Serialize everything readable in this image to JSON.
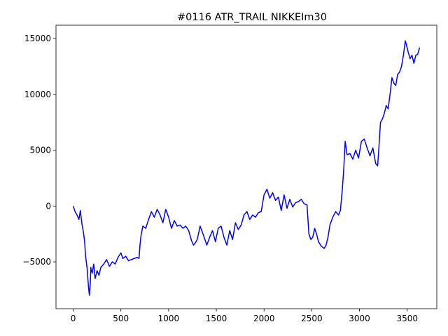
{
  "chart_data": {
    "type": "line",
    "title": "#0116 ATR_TRAIL NIKKEIm30",
    "xlabel": "",
    "ylabel": "",
    "xlim": [
      -180,
      3810
    ],
    "ylim": [
      -9200,
      16200
    ],
    "x_ticks": [
      0,
      500,
      1000,
      1500,
      2000,
      2500,
      3000,
      3500
    ],
    "y_ticks": [
      -5000,
      0,
      5000,
      10000,
      15000
    ],
    "grid": false,
    "legend": "none",
    "line_color": "#0000ff",
    "series": [
      {
        "x": [
          0,
          20,
          40,
          60,
          75,
          90,
          100,
          110,
          120,
          130,
          145,
          160,
          170,
          180,
          185,
          190,
          200,
          215,
          230,
          250,
          270,
          290,
          320,
          350,
          380,
          410,
          440,
          470,
          500,
          520,
          550,
          580,
          610,
          640,
          670,
          690,
          700,
          710,
          730,
          760,
          790,
          820,
          850,
          880,
          910,
          940,
          970,
          1000,
          1030,
          1060,
          1090,
          1120,
          1150,
          1180,
          1210,
          1240,
          1260,
          1280,
          1300,
          1330,
          1360,
          1400,
          1430,
          1460,
          1490,
          1520,
          1550,
          1580,
          1610,
          1640,
          1670,
          1700,
          1730,
          1760,
          1790,
          1820,
          1850,
          1880,
          1910,
          1940,
          1970,
          2000,
          2030,
          2060,
          2090,
          2120,
          2150,
          2180,
          2210,
          2240,
          2270,
          2300,
          2330,
          2360,
          2390,
          2420,
          2450,
          2470,
          2490,
          2510,
          2530,
          2550,
          2570,
          2600,
          2630,
          2650,
          2670,
          2690,
          2720,
          2750,
          2780,
          2800,
          2820,
          2835,
          2850,
          2870,
          2900,
          2930,
          2960,
          2990,
          3020,
          3050,
          3080,
          3110,
          3140,
          3170,
          3190,
          3200,
          3220,
          3240,
          3260,
          3280,
          3300,
          3320,
          3340,
          3360,
          3380,
          3400,
          3420,
          3440,
          3460,
          3480,
          3490,
          3510,
          3530,
          3550,
          3570,
          3590,
          3610,
          3630
        ],
        "y": [
          0,
          -500,
          -800,
          -1200,
          -400,
          -1500,
          -2000,
          -2500,
          -3200,
          -4500,
          -5500,
          -7200,
          -8000,
          -6800,
          -5500,
          -5800,
          -6000,
          -5200,
          -6500,
          -5800,
          -6200,
          -5500,
          -5200,
          -4800,
          -5400,
          -5000,
          -5200,
          -4600,
          -4200,
          -4700,
          -4500,
          -4900,
          -4800,
          -4700,
          -4600,
          -4700,
          -3500,
          -2700,
          -1800,
          -2000,
          -1200,
          -500,
          -1000,
          -300,
          -800,
          -1500,
          -300,
          -1000,
          -2000,
          -1300,
          -1800,
          -1700,
          -2000,
          -1800,
          -2200,
          -3100,
          -3500,
          -3300,
          -3000,
          -1800,
          -2500,
          -3500,
          -2800,
          -2200,
          -3200,
          -2000,
          -1800,
          -2800,
          -3500,
          -2200,
          -3000,
          -1500,
          -2100,
          -1700,
          -800,
          -500,
          -1200,
          -800,
          -1000,
          -600,
          -500,
          1000,
          1500,
          700,
          1200,
          500,
          800,
          -400,
          1000,
          -200,
          600,
          -100,
          300,
          400,
          600,
          200,
          100,
          -2500,
          -3000,
          -2800,
          -2000,
          -2500,
          -3200,
          -3600,
          -3800,
          -3500,
          -2800,
          -1700,
          -1000,
          -500,
          -800,
          -400,
          1500,
          3300,
          5800,
          4600,
          4700,
          4200,
          5000,
          4300,
          5800,
          6000,
          5200,
          4500,
          5200,
          3800,
          3600,
          4800,
          7500,
          7800,
          8300,
          9000,
          8700,
          10000,
          11500,
          11000,
          10800,
          11800,
          12000,
          12500,
          13500,
          14800,
          14500,
          13800,
          13200,
          13500,
          12800,
          13500,
          13600,
          14200
        ]
      }
    ]
  }
}
